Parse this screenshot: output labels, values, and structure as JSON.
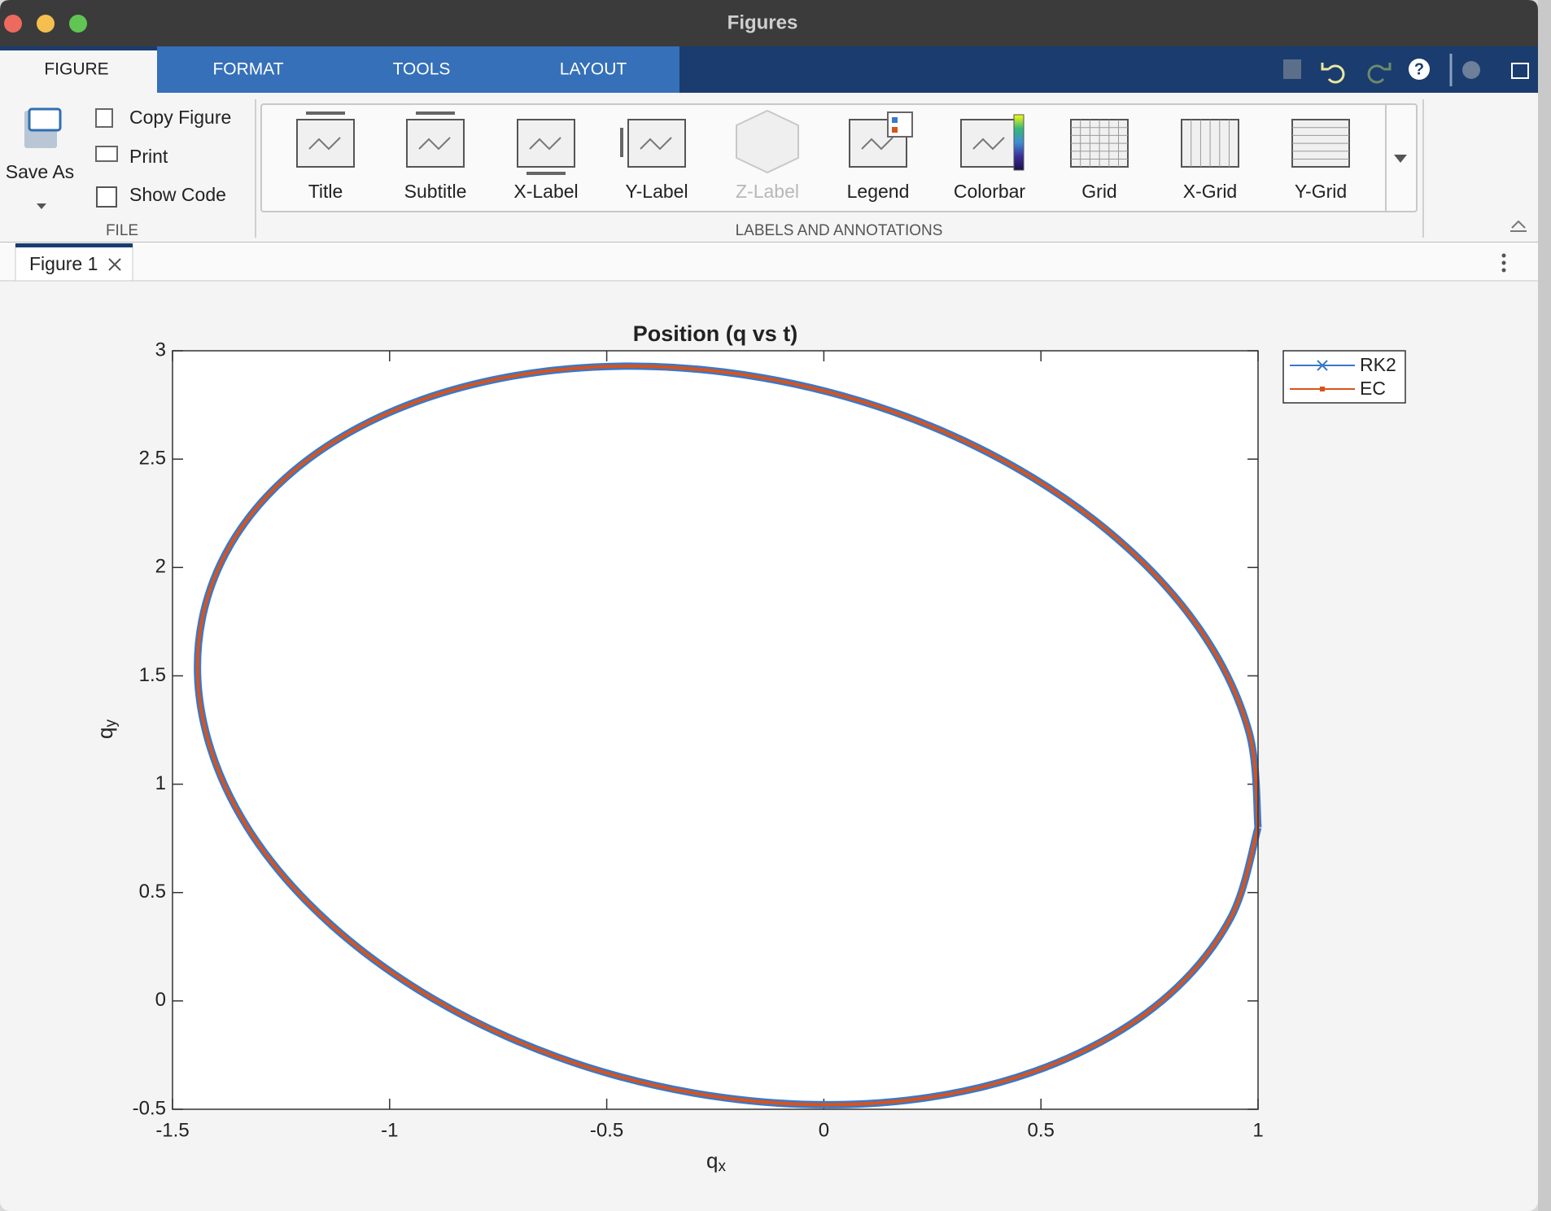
{
  "window": {
    "title": "Figures"
  },
  "tabs": [
    "FIGURE",
    "FORMAT",
    "TOOLS",
    "LAYOUT"
  ],
  "file_section": {
    "save_as": "Save As",
    "items": [
      "Copy Figure",
      "Print",
      "Show Code"
    ],
    "label": "FILE"
  },
  "gallery": {
    "items": [
      {
        "label": "Title",
        "enabled": true
      },
      {
        "label": "Subtitle",
        "enabled": true
      },
      {
        "label": "X-Label",
        "enabled": true
      },
      {
        "label": "Y-Label",
        "enabled": true
      },
      {
        "label": "Z-Label",
        "enabled": false
      },
      {
        "label": "Legend",
        "enabled": true
      },
      {
        "label": "Colorbar",
        "enabled": true
      },
      {
        "label": "Grid",
        "enabled": true
      },
      {
        "label": "X-Grid",
        "enabled": true
      },
      {
        "label": "Y-Grid",
        "enabled": true
      }
    ],
    "label": "LABELS AND ANNOTATIONS"
  },
  "document_tab": "Figure 1",
  "chart_data": {
    "type": "line",
    "title": "Position (q vs t)",
    "x_label": "q",
    "x_label_sub": "x",
    "y_label": "q",
    "y_label_sub": "y",
    "xlim": [
      -1.5,
      1
    ],
    "ylim": [
      -0.5,
      3
    ],
    "xticks": [
      -1.5,
      -1,
      -0.5,
      0,
      0.5,
      1
    ],
    "yticks": [
      -0.5,
      0,
      0.5,
      1,
      1.5,
      2,
      2.5,
      3
    ],
    "grid": false,
    "legend": "northeastoutside",
    "series": [
      {
        "name": "RK2",
        "color": "#3a78c9",
        "marker": "x",
        "x": [
          1.0,
          0.979,
          0.877,
          0.699,
          0.459,
          0.173,
          -0.14,
          -0.459,
          -0.761,
          -1.026,
          -1.237,
          -1.378,
          -1.44,
          -1.419,
          -1.317,
          -1.139,
          -0.899,
          -0.613,
          -0.3,
          0.019,
          0.321,
          0.586,
          0.797,
          0.938,
          1.0
        ],
        "values": [
          0.8,
          1.242,
          1.682,
          2.091,
          2.441,
          2.709,
          2.875,
          2.929,
          2.866,
          2.692,
          2.418,
          2.063,
          1.65,
          1.209,
          0.768,
          0.359,
          0.009,
          -0.259,
          -0.425,
          -0.479,
          -0.417,
          -0.242,
          0.032,
          0.387,
          0.8
        ]
      },
      {
        "name": "EC",
        "color": "#d95319",
        "marker": "square",
        "x": [
          1.0,
          0.979,
          0.877,
          0.699,
          0.459,
          0.173,
          -0.14,
          -0.459,
          -0.761,
          -1.026,
          -1.237,
          -1.378,
          -1.44,
          -1.419,
          -1.317,
          -1.139,
          -0.899,
          -0.613,
          -0.3,
          0.019,
          0.321,
          0.586,
          0.797,
          0.938,
          1.0
        ],
        "values": [
          0.8,
          1.242,
          1.682,
          2.091,
          2.441,
          2.709,
          2.875,
          2.929,
          2.866,
          2.692,
          2.418,
          2.063,
          1.65,
          1.209,
          0.768,
          0.359,
          0.009,
          -0.259,
          -0.425,
          -0.479,
          -0.417,
          -0.242,
          0.032,
          0.387,
          0.8
        ]
      }
    ]
  }
}
